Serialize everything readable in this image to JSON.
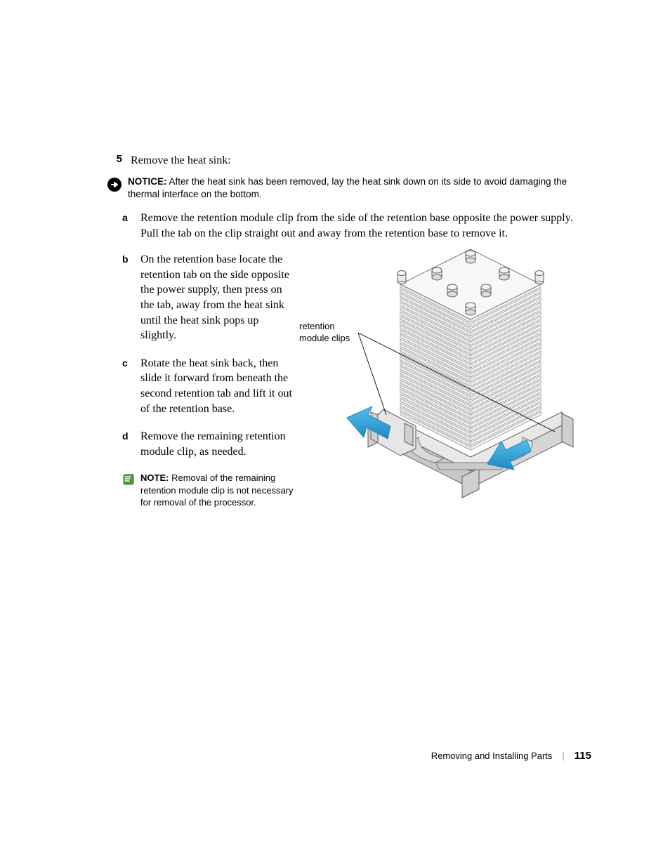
{
  "step": {
    "number": "5",
    "text": "Remove the heat sink:"
  },
  "notice": {
    "label": "NOTICE:",
    "text": "After the heat sink has been removed, lay the heat sink down on its side to avoid damaging the thermal interface on the bottom."
  },
  "substeps": {
    "a": {
      "letter": "a",
      "text": "Remove the retention module clip from the side of the retention base opposite the power supply. Pull the tab on the clip straight out and away from the retention base to remove it."
    },
    "b": {
      "letter": "b",
      "text": "On the retention base locate the retention tab on the side opposite the power supply, then press on the tab, away from the heat sink until the heat sink pops up slightly."
    },
    "c": {
      "letter": "c",
      "text": "Rotate the heat sink back, then slide it forward from beneath the second retention tab and lift it out of the retention base."
    },
    "d": {
      "letter": "d",
      "text": "Remove the remaining retention module clip, as needed."
    }
  },
  "note": {
    "label": "NOTE:",
    "text": "Removal of the remaining retention module clip is not necessary for removal of the processor."
  },
  "figure": {
    "callout_line1": "retention",
    "callout_line2": "module clips",
    "colors": {
      "stroke": "#5e5e5e",
      "fill_light": "#f4f4f4",
      "fill_mid": "#dcdcdc",
      "fill_dark": "#bfbfbf",
      "arrow": "#2aa7e0",
      "arrow_dark": "#1e88c4",
      "pipe": "#d0d0d0"
    }
  },
  "footer": {
    "section": "Removing and Installing Parts",
    "page": "115"
  },
  "icons": {
    "notice_bg": "#000000",
    "notice_fg": "#ffffff",
    "note_fg": "#4a9f3a",
    "note_stroke": "#2f7a22"
  }
}
